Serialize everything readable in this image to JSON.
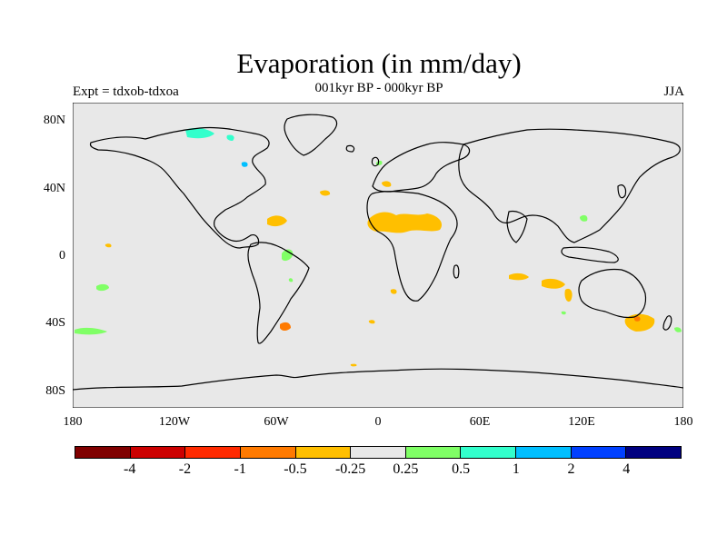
{
  "title": "Evaporation (in mm/day)",
  "subtitle": "001kyr BP - 000kyr BP",
  "left_label": "Expt = tdxob-tdxoa",
  "right_label": "JJA",
  "map": {
    "background_color": "#e8e8e8",
    "coastline_color": "#000000",
    "projection": "cylindrical equidistant",
    "lon_range": [
      -180,
      180
    ],
    "lat_range": [
      -90,
      90
    ]
  },
  "x_ticks": [
    "180",
    "120W",
    "60W",
    "0",
    "60E",
    "120E",
    "180"
  ],
  "y_ticks": [
    "80N",
    "40N",
    "0",
    "40S",
    "80S"
  ],
  "colorbar": {
    "colors": [
      "#800000",
      "#cc0000",
      "#ff2a00",
      "#ff7a00",
      "#ffbf00",
      "#e8e8e8",
      "#80ff66",
      "#33ffcc",
      "#00bfff",
      "#0040ff",
      "#000080"
    ],
    "labels": [
      "-4",
      "-2",
      "-1",
      "-0.5",
      "-0.25",
      "0.25",
      "0.5",
      "1",
      "2",
      "4"
    ]
  },
  "anomaly_patches": [
    {
      "category": "-0.5 to -0.25",
      "color": "#ffbf00",
      "region": "Sahel / Sahara"
    },
    {
      "category": "-0.5 to -0.25",
      "color": "#ffbf00",
      "region": "Atlantic east of Caribbean"
    },
    {
      "category": "-0.5 to -0.25",
      "color": "#ffbf00",
      "region": "Southern Indian Ocean"
    },
    {
      "category": "-0.5 to -0.25",
      "color": "#ffbf00",
      "region": "South of Australia"
    },
    {
      "category": "-1 to -0.5",
      "color": "#ff7a00",
      "region": "South Atlantic off Argentina"
    },
    {
      "category": "0.25 to 0.5",
      "color": "#80ff66",
      "region": "South Pacific"
    },
    {
      "category": "0.25 to 0.5",
      "color": "#80ff66",
      "region": "Amazon"
    },
    {
      "category": "0.5 to 1",
      "color": "#33ffcc",
      "region": "Canadian Arctic"
    },
    {
      "category": "1 to 2",
      "color": "#00bfff",
      "region": "Hudson Bay"
    }
  ]
}
